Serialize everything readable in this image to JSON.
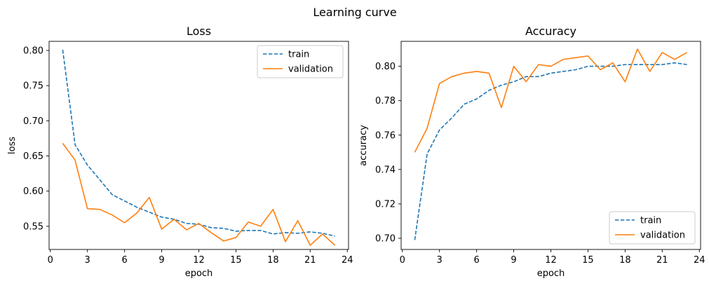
{
  "figure": {
    "suptitle": "Learning curve"
  },
  "chart_data": [
    {
      "type": "line",
      "title": "Loss",
      "xlabel": "epoch",
      "ylabel": "loss",
      "xlim": [
        -0.1,
        24.1
      ],
      "ylim": [
        0.517,
        0.813
      ],
      "xticks": [
        0,
        3,
        6,
        9,
        12,
        15,
        18,
        21,
        24
      ],
      "yticks": [
        0.55,
        0.6,
        0.65,
        0.7,
        0.75,
        0.8
      ],
      "ytick_labels": [
        "0.55",
        "0.60",
        "0.65",
        "0.70",
        "0.75",
        "0.80"
      ],
      "grid": false,
      "legend": "top-right",
      "x": [
        1,
        2,
        3,
        4,
        5,
        6,
        7,
        8,
        9,
        10,
        11,
        12,
        13,
        14,
        15,
        16,
        17,
        18,
        19,
        20,
        21,
        22,
        23
      ],
      "series": [
        {
          "name": "train",
          "style": "dashed",
          "color": "#1f77b4",
          "values": [
            0.801,
            0.666,
            0.637,
            0.616,
            0.595,
            0.586,
            0.577,
            0.57,
            0.563,
            0.56,
            0.554,
            0.553,
            0.548,
            0.547,
            0.543,
            0.544,
            0.544,
            0.539,
            0.541,
            0.54,
            0.542,
            0.54,
            0.536
          ]
        },
        {
          "name": "validation",
          "style": "solid",
          "color": "#ff7f0e",
          "values": [
            0.668,
            0.644,
            0.575,
            0.574,
            0.566,
            0.555,
            0.569,
            0.591,
            0.546,
            0.56,
            0.545,
            0.554,
            0.541,
            0.529,
            0.534,
            0.556,
            0.55,
            0.574,
            0.528,
            0.558,
            0.523,
            0.539,
            0.523
          ]
        }
      ]
    },
    {
      "type": "line",
      "title": "Accuracy",
      "xlabel": "epoch",
      "ylabel": "accuracy",
      "xlim": [
        -0.1,
        24.1
      ],
      "ylim": [
        0.6935,
        0.8145
      ],
      "xticks": [
        0,
        3,
        6,
        9,
        12,
        15,
        18,
        21,
        24
      ],
      "yticks": [
        0.7,
        0.72,
        0.74,
        0.76,
        0.78,
        0.8
      ],
      "ytick_labels": [
        "0.70",
        "0.72",
        "0.74",
        "0.76",
        "0.78",
        "0.80"
      ],
      "grid": false,
      "legend": "bottom-right",
      "x": [
        1,
        2,
        3,
        4,
        5,
        6,
        7,
        8,
        9,
        10,
        11,
        12,
        13,
        14,
        15,
        16,
        17,
        18,
        19,
        20,
        21,
        22,
        23
      ],
      "series": [
        {
          "name": "train",
          "style": "dashed",
          "color": "#1f77b4",
          "values": [
            0.699,
            0.749,
            0.763,
            0.77,
            0.778,
            0.781,
            0.786,
            0.789,
            0.791,
            0.794,
            0.794,
            0.796,
            0.797,
            0.798,
            0.8,
            0.8,
            0.8,
            0.801,
            0.801,
            0.801,
            0.801,
            0.802,
            0.801
          ]
        },
        {
          "name": "validation",
          "style": "solid",
          "color": "#ff7f0e",
          "values": [
            0.75,
            0.764,
            0.79,
            0.794,
            0.796,
            0.797,
            0.796,
            0.776,
            0.8,
            0.791,
            0.801,
            0.8,
            0.804,
            0.805,
            0.806,
            0.798,
            0.802,
            0.791,
            0.81,
            0.797,
            0.808,
            0.804,
            0.808
          ]
        }
      ]
    }
  ]
}
